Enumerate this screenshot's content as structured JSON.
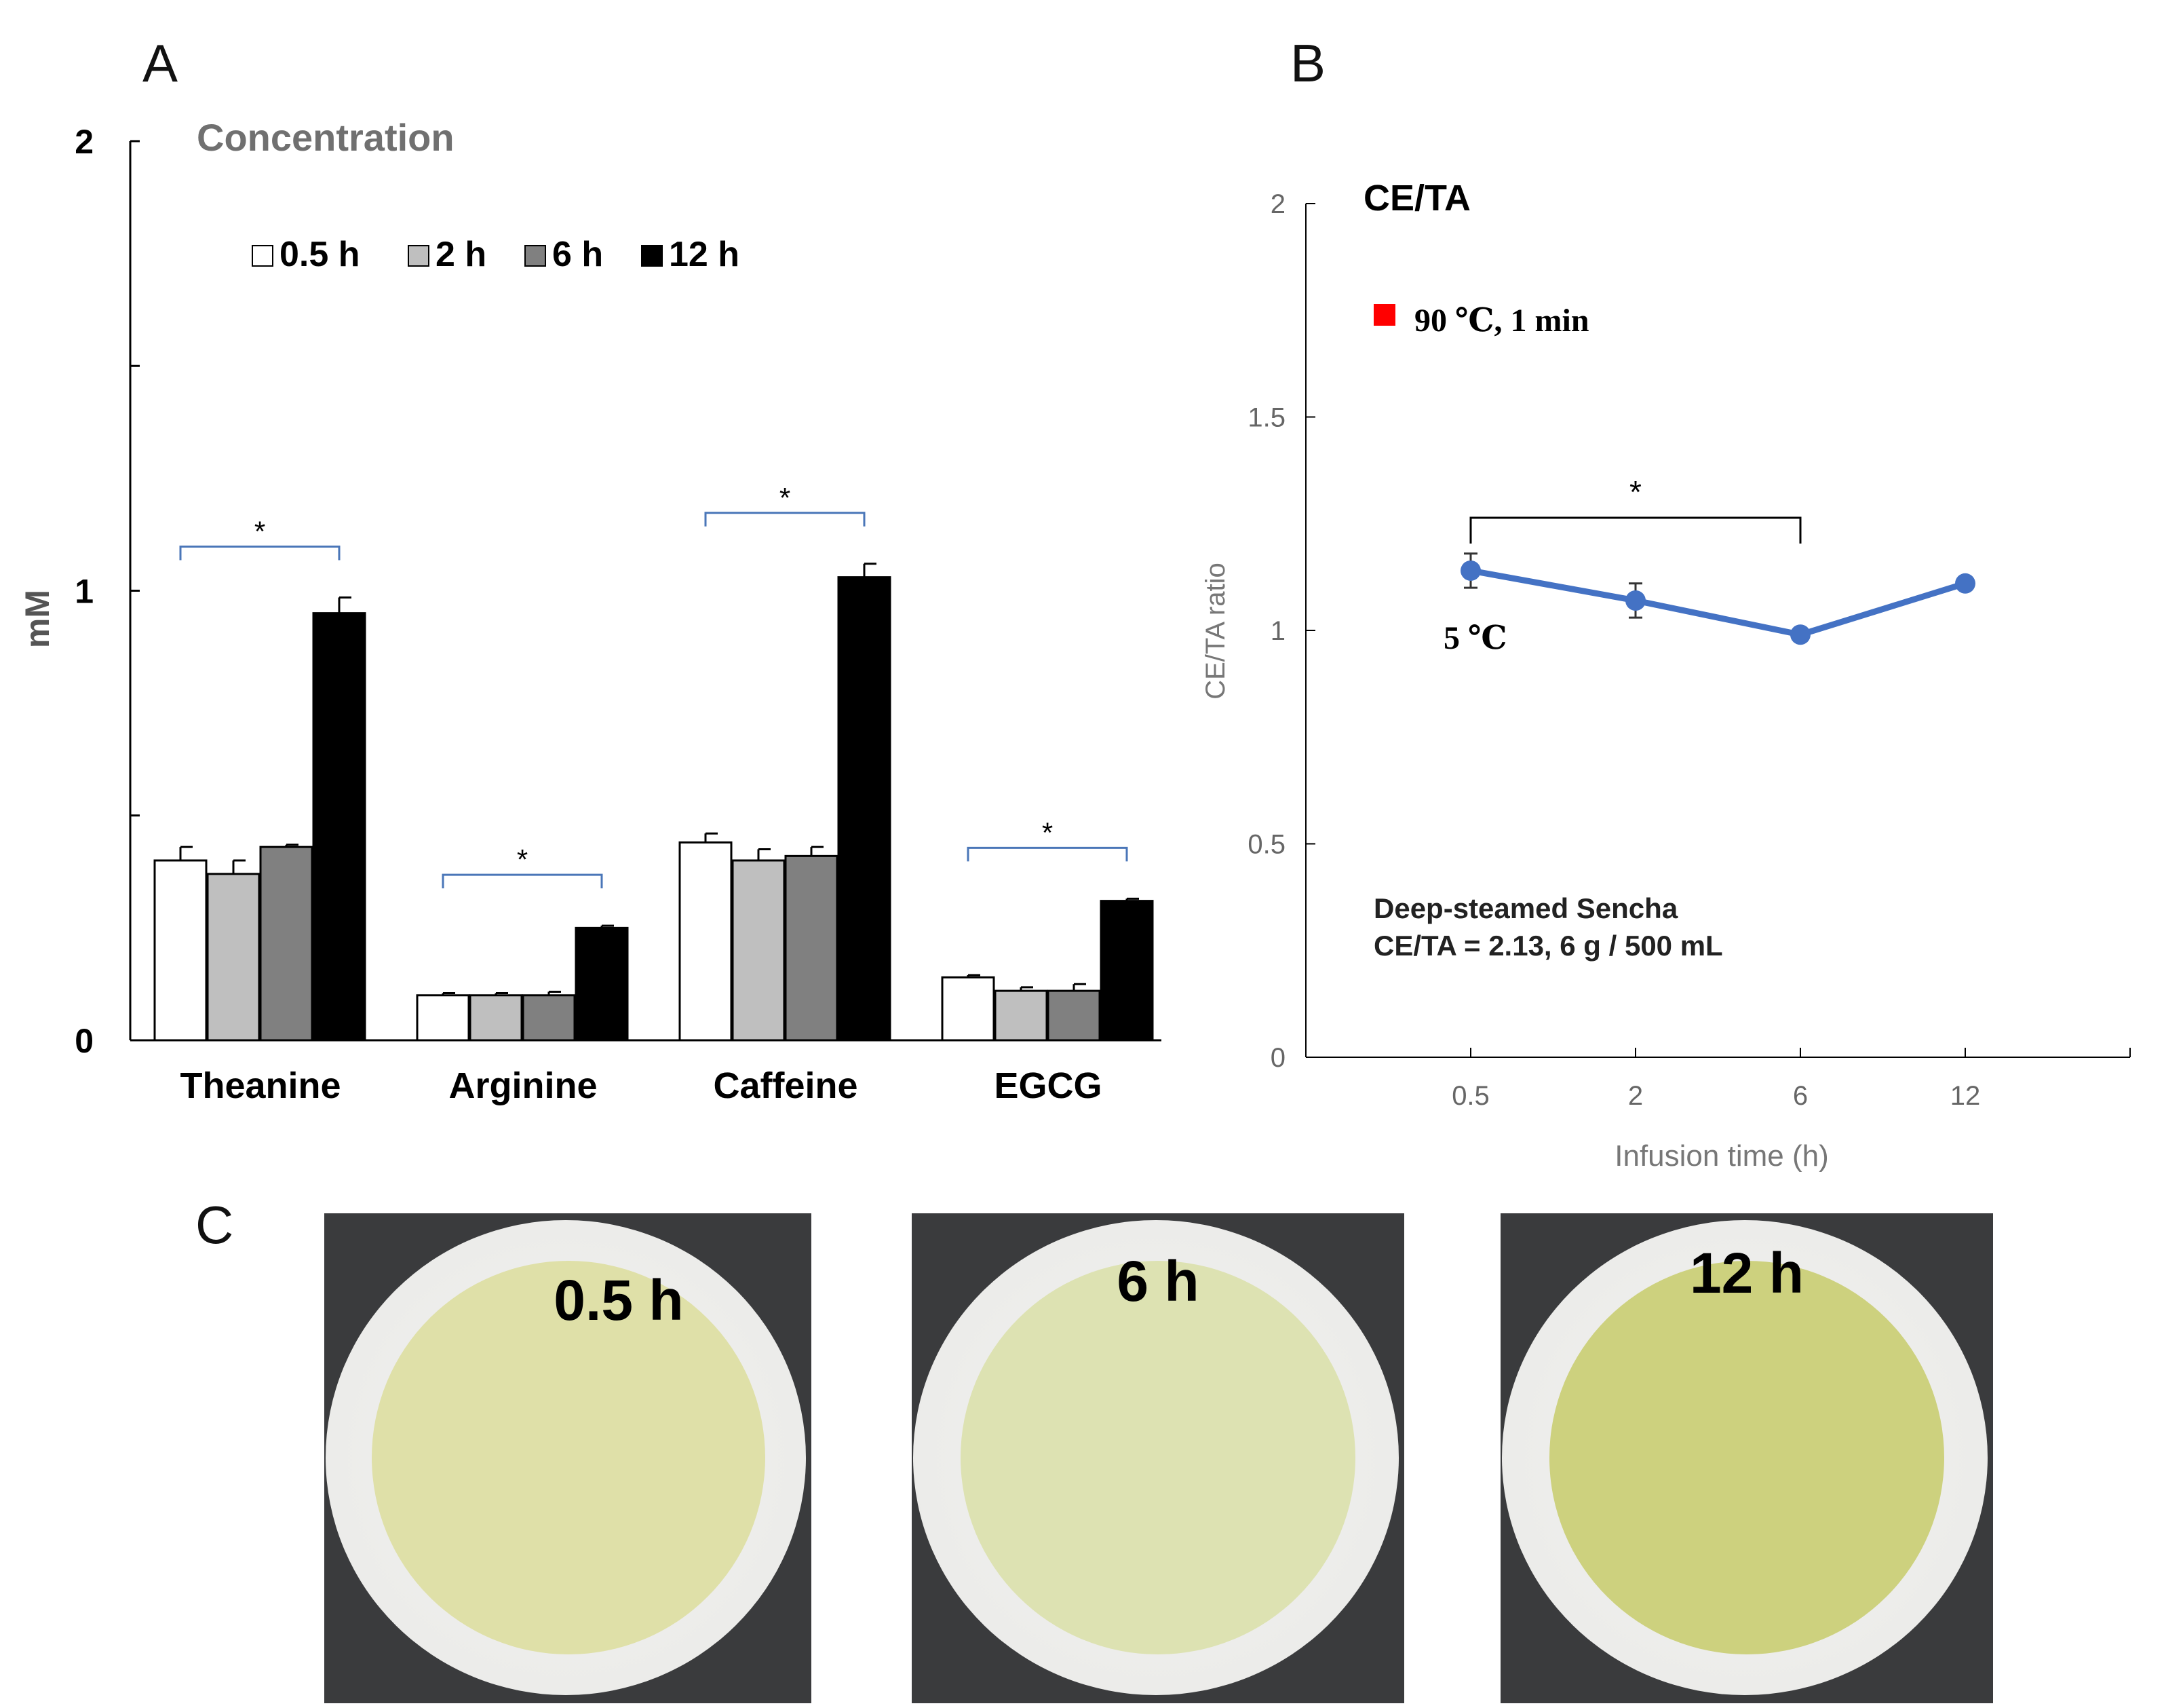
{
  "panels": {
    "a_label": "A",
    "b_label": "B",
    "c_label": "C"
  },
  "chart_data": [
    {
      "type": "bar",
      "title": "Concentration",
      "ylabel": "mM",
      "xlabel": "",
      "ylim": [
        0,
        2
      ],
      "yticks": [
        "0",
        "1",
        "2"
      ],
      "legend_position": "top-left",
      "categories": [
        "Theanine",
        "Arginine",
        "Caffeine",
        "EGCG"
      ],
      "series": [
        {
          "name": "0.5 h",
          "color": "#ffffff",
          "values": [
            0.4,
            0.1,
            0.44,
            0.14
          ],
          "errors": [
            0.03,
            0.005,
            0.02,
            0.005
          ]
        },
        {
          "name": "2 h",
          "color": "#bfbfbf",
          "values": [
            0.37,
            0.1,
            0.4,
            0.11
          ],
          "errors": [
            0.03,
            0.005,
            0.025,
            0.008
          ]
        },
        {
          "name": "6 h",
          "color": "#808080",
          "values": [
            0.43,
            0.1,
            0.41,
            0.11
          ],
          "errors": [
            0.005,
            0.008,
            0.02,
            0.015
          ]
        },
        {
          "name": "12 h",
          "color": "#000000",
          "values": [
            0.95,
            0.25,
            1.03,
            0.31
          ],
          "errors": [
            0.035,
            0.005,
            0.03,
            0.005
          ]
        }
      ],
      "annotations": [
        "*",
        "*",
        "*",
        "*"
      ]
    },
    {
      "type": "line",
      "title": "CE/TA",
      "ylabel": "CE/TA ratio",
      "xlabel": "Infusion time (h)",
      "ylim": [
        0,
        2
      ],
      "yticks": [
        "0",
        "0.5",
        "1",
        "1.5",
        "2"
      ],
      "categories": [
        "0.5",
        "2",
        "6",
        "12"
      ],
      "series": [
        {
          "name": "5 ℃",
          "color": "#4472c4",
          "values": [
            1.14,
            1.07,
            0.99,
            1.11
          ],
          "errors": [
            0.04,
            0.04,
            0.01,
            0.01
          ]
        }
      ],
      "legend": {
        "label": "90 ℃, 1 min",
        "color": "#ff0000"
      },
      "significance": "*",
      "note_line1": "Deep-steamed Sencha",
      "note_line2": "CE/TA = 2.13, 6 g / 500 mL"
    }
  ],
  "photos": [
    {
      "label": "0.5 h",
      "liquid": "#dfe0a8"
    },
    {
      "label": "6 h",
      "liquid": "#dde2b2"
    },
    {
      "label": "12 h",
      "liquid": "#cdd17e"
    }
  ]
}
